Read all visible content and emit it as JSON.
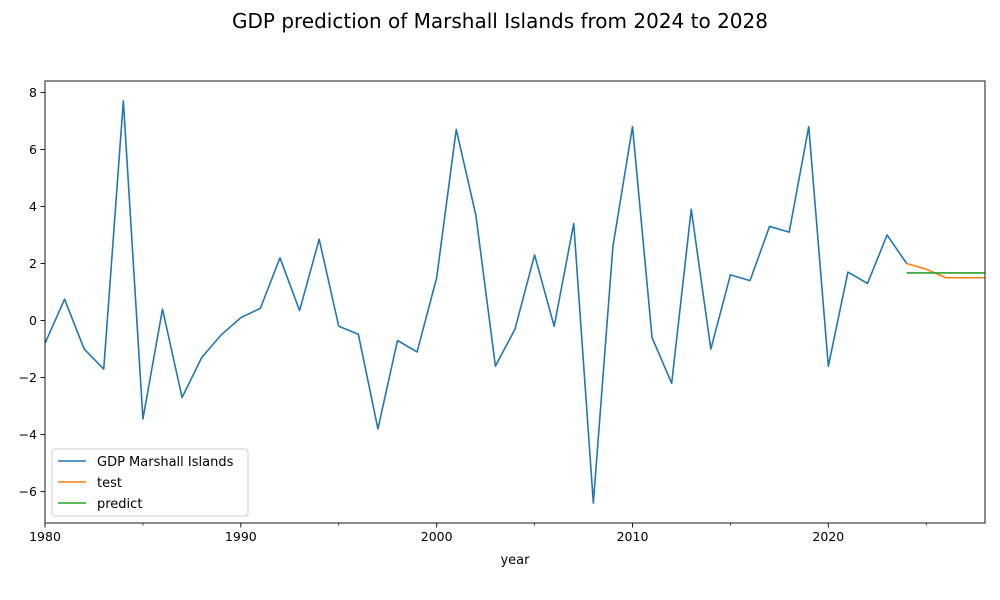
{
  "chart_data": {
    "type": "line",
    "title": "GDP prediction of Marshall Islands from 2024 to 2028",
    "xlabel": "year",
    "ylabel": "",
    "xlim": [
      1980,
      2028
    ],
    "ylim": [
      -7.1,
      8.4
    ],
    "x_ticks": [
      1980,
      1990,
      2000,
      2010,
      2020
    ],
    "x_minor_ticks": [
      1985,
      1995,
      2005,
      2015,
      2025
    ],
    "y_ticks": [
      -6,
      -4,
      -2,
      0,
      2,
      4,
      6,
      8
    ],
    "y_tick_labels": [
      "−6",
      "−4",
      "−2",
      "0",
      "2",
      "4",
      "6",
      "8"
    ],
    "grid": false,
    "legend_position": "lower-left",
    "series": [
      {
        "name": "GDP Marshall Islands",
        "color": "#1f77b4",
        "x": [
          1980,
          1981,
          1982,
          1983,
          1984,
          1985,
          1986,
          1987,
          1988,
          1989,
          1990,
          1991,
          1992,
          1993,
          1994,
          1995,
          1996,
          1997,
          1998,
          1999,
          2000,
          2001,
          2002,
          2003,
          2004,
          2005,
          2006,
          2007,
          2008,
          2009,
          2010,
          2011,
          2012,
          2013,
          2014,
          2015,
          2016,
          2017,
          2018,
          2019,
          2020,
          2021,
          2022,
          2023,
          2024
        ],
        "values": [
          -0.8,
          0.75,
          -1.0,
          -1.7,
          7.7,
          -3.45,
          0.4,
          -2.7,
          -1.3,
          -0.5,
          0.1,
          0.43,
          2.2,
          0.35,
          2.85,
          -0.2,
          -0.48,
          -3.8,
          -0.7,
          -1.1,
          1.5,
          6.7,
          3.7,
          -1.6,
          -0.3,
          2.3,
          -0.2,
          3.4,
          -6.4,
          2.6,
          6.8,
          -0.6,
          -2.2,
          3.9,
          -1.0,
          1.6,
          1.4,
          3.3,
          3.1,
          6.8,
          -1.6,
          1.7,
          1.3,
          3.0,
          2.0
        ]
      },
      {
        "name": "test",
        "color": "#ff7f0e",
        "x": [
          2024,
          2025,
          2026,
          2027,
          2028
        ],
        "values": [
          2.0,
          1.8,
          1.5,
          1.5,
          1.5
        ]
      },
      {
        "name": "predict",
        "color": "#2ca02c",
        "x": [
          2024,
          2025,
          2026,
          2027,
          2028
        ],
        "values": [
          1.67,
          1.67,
          1.67,
          1.67,
          1.67
        ]
      }
    ]
  }
}
